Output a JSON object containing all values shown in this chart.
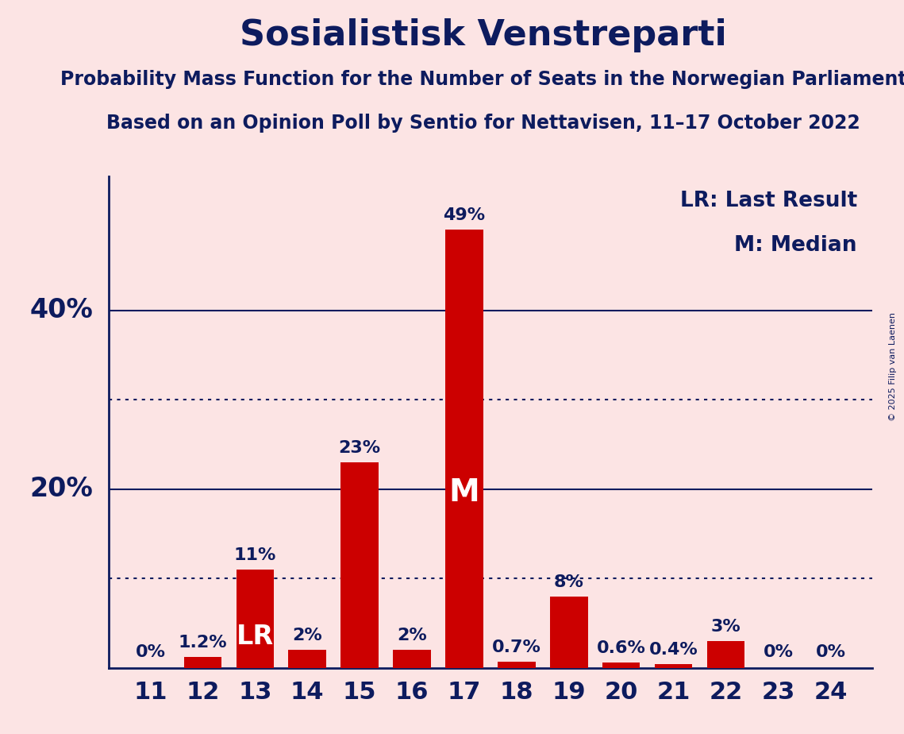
{
  "title": "Sosialistisk Venstreparti",
  "subtitle1": "Probability Mass Function for the Number of Seats in the Norwegian Parliament",
  "subtitle2": "Based on an Opinion Poll by Sentio for Nettavisen, 11–17 October 2022",
  "copyright": "© 2025 Filip van Laenen",
  "seats": [
    11,
    12,
    13,
    14,
    15,
    16,
    17,
    18,
    19,
    20,
    21,
    22,
    23,
    24
  ],
  "values": [
    0.0,
    1.2,
    11.0,
    2.0,
    23.0,
    2.0,
    49.0,
    0.7,
    8.0,
    0.6,
    0.4,
    3.0,
    0.0,
    0.0
  ],
  "bar_color": "#cc0000",
  "background_color": "#fce4e4",
  "title_color": "#0d1b5e",
  "axis_color": "#0d1b5e",
  "label_color": "#0d1b5e",
  "lr_seat": 13,
  "median_seat": 17,
  "dotted_lines": [
    10,
    30
  ],
  "solid_lines": [
    20,
    40
  ],
  "ylim": [
    0,
    55
  ],
  "legend_lr": "LR: Last Result",
  "legend_m": "M: Median"
}
